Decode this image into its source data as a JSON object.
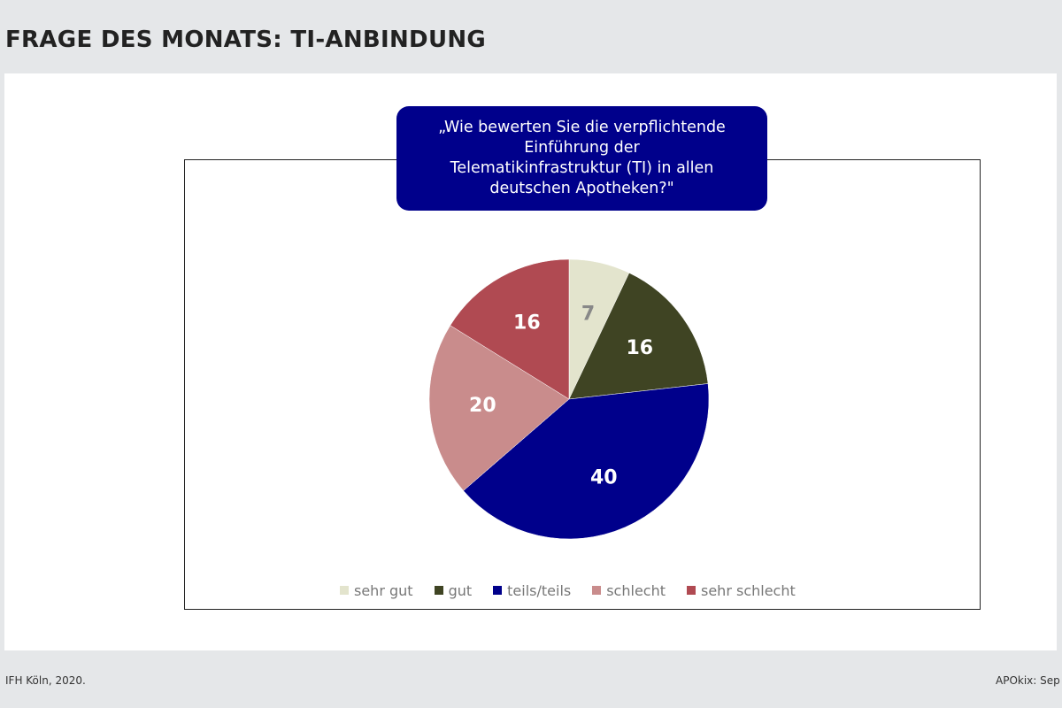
{
  "header": {
    "title": "FRAGE DES MONATS: TI-ANBINDUNG"
  },
  "question_lines": [
    "„Wie bewerten Sie die verpflichtende",
    "Einführung der",
    "Telematikinfrastruktur (TI) in allen",
    "deutschen Apotheken?\""
  ],
  "chart_data": {
    "type": "pie",
    "title": "„Wie bewerten Sie die verpflichtende Einführung der Telematikinfrastruktur (TI) in allen deutschen Apotheken?\"",
    "categories": [
      "sehr gut",
      "gut",
      "teils/teils",
      "schlecht",
      "sehr schlecht"
    ],
    "values": [
      7,
      16,
      40,
      20,
      16
    ],
    "colors": [
      "#e3e4cd",
      "#3f4423",
      "#00008b",
      "#c98c8c",
      "#b04a52"
    ],
    "label_colors": [
      "#888888",
      "#ffffff",
      "#ffffff",
      "#ffffff",
      "#ffffff"
    ],
    "legend_position": "bottom",
    "data_labels": true
  },
  "footer": {
    "source": "IFH Köln, 2020.",
    "right_text": "APOkix: Sep"
  }
}
